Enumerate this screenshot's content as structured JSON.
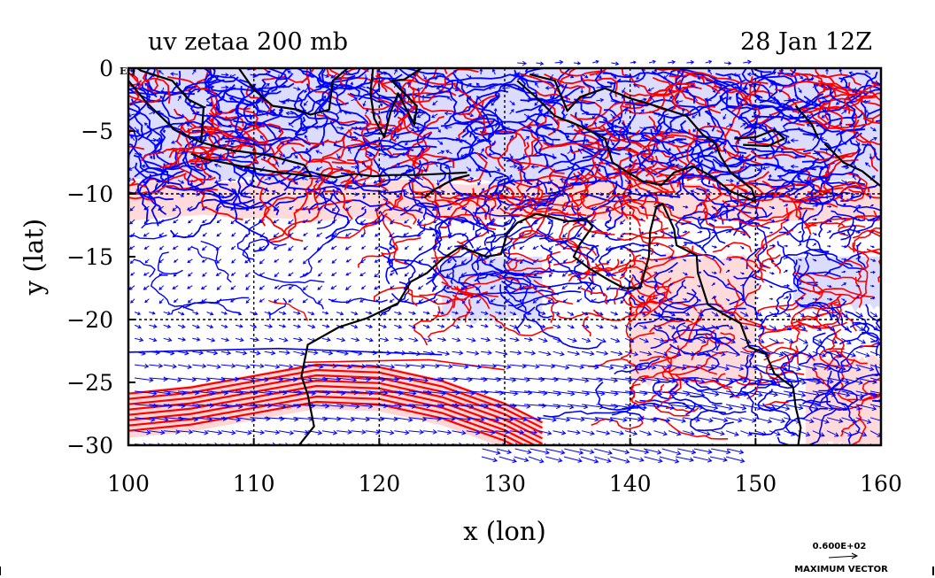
{
  "chart_data": {
    "type": "contour_vector_map",
    "title_left": "uv zetaa 200 mb",
    "title_right": "28 Jan 12Z",
    "xlabel": "x (lon)",
    "ylabel": "y (lat)",
    "xlim": [
      100,
      160
    ],
    "ylim": [
      -30,
      0
    ],
    "x_ticks": [
      100,
      110,
      120,
      130,
      140,
      150,
      160
    ],
    "x_tick_labels": [
      "100",
      "110",
      "120",
      "130",
      "140",
      "150",
      "160"
    ],
    "y_ticks": [
      0,
      -5,
      -10,
      -15,
      -20,
      -25,
      -30
    ],
    "y_tick_labels": [
      "0",
      "−5",
      "−10",
      "−15",
      "−20",
      "−25",
      "−30"
    ],
    "equator_label": "EQ",
    "grid_lines_lon": [
      110,
      120,
      130,
      140,
      150
    ],
    "grid_lines_lat": [
      -10,
      -20
    ],
    "max_vector_value": "0.600E+02",
    "max_vector_label": "MAXIMUM VECTOR",
    "colors": {
      "positive_line": "#ff0000",
      "positive_fill": "#ffd6d6",
      "negative_line": "#0000ff",
      "negative_fill": "#dcdcff",
      "vectors": "#0000ff",
      "coast": "#000000"
    },
    "jet_core_band": [
      {
        "lon": 100,
        "lat": -27.3
      },
      {
        "lon": 105,
        "lat": -26.8
      },
      {
        "lon": 110,
        "lat": -25.9
      },
      {
        "lon": 115,
        "lat": -25.0
      },
      {
        "lon": 120,
        "lat": -25.2
      },
      {
        "lon": 125,
        "lat": -26.3
      },
      {
        "lon": 130,
        "lat": -28.1
      },
      {
        "lon": 133,
        "lat": -29.6
      }
    ],
    "negative_regions": [
      {
        "lon": [
          100,
          160
        ],
        "lat": [
          -9,
          0
        ]
      },
      {
        "lon": [
          125,
          133
        ],
        "lat": [
          -20,
          -15
        ]
      },
      {
        "lon": [
          153,
          160
        ],
        "lat": [
          -19,
          -15
        ]
      }
    ],
    "positive_regions": [
      {
        "lon": [
          100,
          160
        ],
        "lat": [
          -12,
          -9
        ]
      },
      {
        "lon": [
          140,
          150
        ],
        "lat": [
          -25,
          -15
        ]
      },
      {
        "lon": [
          154,
          160
        ],
        "lat": [
          -30,
          -23
        ]
      }
    ]
  }
}
